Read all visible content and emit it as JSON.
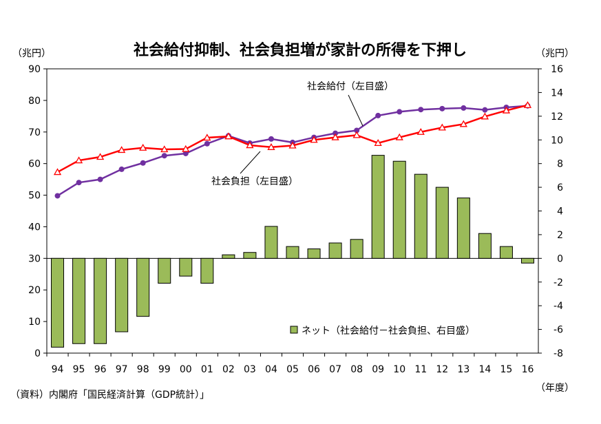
{
  "chart_data": {
    "type": "bar+line",
    "title": "社会給付抑制、社会負担増が家計の所得を下押し",
    "left_unit": "（兆円）",
    "right_unit": "（兆円）",
    "x_unit": "（年度）",
    "source": "（資料）内閣府「国民経済計算（GDP統計）」",
    "categories": [
      "94",
      "95",
      "96",
      "97",
      "98",
      "99",
      "00",
      "01",
      "02",
      "03",
      "04",
      "05",
      "06",
      "07",
      "08",
      "09",
      "10",
      "11",
      "12",
      "13",
      "14",
      "15",
      "16"
    ],
    "left_axis": {
      "min": 0,
      "max": 90,
      "ticks": [
        0,
        10,
        20,
        30,
        40,
        50,
        60,
        70,
        80,
        90
      ]
    },
    "right_axis": {
      "min": -8,
      "max": 16,
      "ticks": [
        -8,
        -6,
        -4,
        -2,
        0,
        2,
        4,
        6,
        8,
        10,
        12,
        14,
        16
      ]
    },
    "series": [
      {
        "name": "ネット（社会給付－社会負担、右目盛）",
        "kind": "bar",
        "axis": "right",
        "color": "#9bbb59",
        "values": [
          -7.5,
          -7.2,
          -7.2,
          -6.2,
          -4.9,
          -2.1,
          -1.5,
          -2.1,
          0.3,
          0.5,
          2.7,
          1.0,
          0.8,
          1.3,
          1.6,
          8.7,
          8.2,
          7.1,
          6.0,
          5.1,
          2.1,
          1.0,
          -0.4
        ]
      },
      {
        "name": "社会給付（左目盛）",
        "kind": "line",
        "axis": "left",
        "color": "#7030a0",
        "values": [
          49.8,
          54.0,
          55.0,
          58.2,
          60.2,
          62.5,
          63.2,
          66.3,
          68.8,
          66.5,
          67.8,
          66.7,
          68.3,
          69.6,
          70.5,
          75.2,
          76.4,
          77.1,
          77.4,
          77.6,
          77.0,
          77.8,
          78.3
        ]
      },
      {
        "name": "社会負担（左目盛）",
        "kind": "line",
        "axis": "left",
        "color": "#ff0000",
        "values": [
          57.3,
          61.0,
          62.1,
          64.3,
          65.0,
          64.5,
          64.6,
          68.2,
          68.6,
          65.8,
          65.2,
          65.7,
          67.5,
          68.3,
          69.0,
          66.5,
          68.3,
          70.0,
          71.4,
          72.5,
          74.9,
          76.8,
          78.5
        ]
      }
    ],
    "annotations": [
      {
        "text": "社会給付（左目盛）"
      },
      {
        "text": "社会負担（左目盛）"
      }
    ],
    "legend_position": "bottom-right",
    "grid": false
  }
}
